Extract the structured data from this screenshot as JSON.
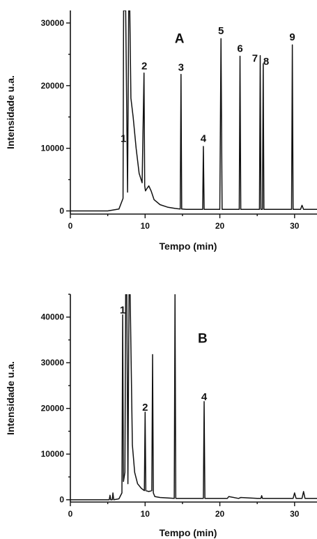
{
  "chart_data": [
    {
      "type": "line",
      "panel": "A",
      "xlabel": "Tempo (min)",
      "ylabel": "Intensidade u.a.",
      "xlim": [
        0,
        33
      ],
      "ylim": [
        -500,
        32000
      ],
      "xticks": [
        0,
        10,
        20,
        30
      ],
      "yticks": [
        0,
        10000,
        20000,
        30000
      ],
      "grid": false,
      "legend": "none",
      "series": [
        {
          "x": [
            0,
            5,
            6.5,
            7.05,
            7.12,
            7.4,
            7.65,
            7.8,
            7.95,
            8.1,
            8.4,
            8.8,
            9.2,
            9.6,
            9.85,
            9.95,
            10.05,
            10.2,
            10.5,
            10.8,
            11.2,
            12,
            13,
            14,
            14.7,
            14.8,
            14.9,
            15.5,
            17.7,
            17.8,
            17.9,
            20,
            20.15,
            20.3,
            22.6,
            22.7,
            22.8,
            25.3,
            25.4,
            25.5,
            25.7,
            25.8,
            25.9,
            29.6,
            29.7,
            29.8,
            30.8,
            31,
            31.2,
            33
          ],
          "y": [
            0,
            0,
            300,
            2000,
            32000,
            32000,
            3000,
            32000,
            32000,
            18000,
            15000,
            10000,
            6000,
            4500,
            22000,
            4000,
            3200,
            3500,
            4000,
            3200,
            1800,
            1000,
            600,
            400,
            300,
            21800,
            300,
            250,
            250,
            10300,
            250,
            250,
            27500,
            250,
            250,
            24700,
            250,
            250,
            24800,
            250,
            250,
            23500,
            250,
            250,
            26500,
            250,
            250,
            900,
            250,
            250
          ]
        }
      ],
      "annotations": [
        {
          "label": "1",
          "x": 7.1,
          "y": 11000
        },
        {
          "label": "2",
          "x": 9.9,
          "y": 22600
        },
        {
          "label": "3",
          "x": 14.8,
          "y": 22400
        },
        {
          "label": "4",
          "x": 17.8,
          "y": 11000
        },
        {
          "label": "5",
          "x": 20.15,
          "y": 28200
        },
        {
          "label": "6",
          "x": 22.7,
          "y": 25400
        },
        {
          "label": "7",
          "x": 24.7,
          "y": 23800
        },
        {
          "label": "8",
          "x": 26.2,
          "y": 23300
        },
        {
          "label": "9",
          "x": 29.7,
          "y": 27200
        },
        {
          "label": "A",
          "x": 14.6,
          "y": 26800
        }
      ]
    },
    {
      "type": "line",
      "panel": "B",
      "xlabel": "Tempo (min)",
      "ylabel": "Intensidade u.a.",
      "xlim": [
        0,
        33
      ],
      "ylim": [
        -500,
        45000
      ],
      "xticks": [
        0,
        10,
        20,
        30
      ],
      "yticks": [
        0,
        10000,
        20000,
        30000,
        40000
      ],
      "grid": false,
      "legend": "none",
      "series": [
        {
          "x": [
            0,
            5.2,
            5.3,
            5.4,
            5.6,
            5.7,
            5.8,
            6.5,
            6.9,
            7.0,
            7.1,
            7.3,
            7.4,
            7.55,
            7.7,
            7.85,
            8.0,
            8.3,
            8.6,
            9.0,
            9.5,
            9.9,
            10.0,
            10.1,
            10.5,
            10.9,
            11.0,
            11.1,
            11.3,
            12,
            13,
            13.9,
            14.0,
            14.1,
            15,
            17.8,
            17.9,
            18.0,
            20,
            21,
            21.2,
            22.5,
            22.8,
            25,
            25.5,
            25.6,
            25.7,
            27,
            29.8,
            30,
            30.2,
            31,
            31.2,
            31.4,
            33
          ],
          "y": [
            0,
            0,
            1000,
            0,
            0,
            1500,
            0,
            200,
            1500,
            40500,
            4000,
            6000,
            45000,
            45000,
            3500,
            45000,
            45000,
            12000,
            6000,
            3500,
            2500,
            2000,
            19200,
            2000,
            1800,
            2000,
            31800,
            1500,
            700,
            500,
            400,
            300,
            45000,
            300,
            300,
            300,
            21500,
            300,
            300,
            300,
            700,
            300,
            500,
            300,
            300,
            900,
            300,
            300,
            300,
            1500,
            300,
            300,
            1800,
            300,
            300
          ]
        }
      ],
      "annotations": [
        {
          "label": "1",
          "x": 7.0,
          "y": 40800
        },
        {
          "label": "2",
          "x": 10.0,
          "y": 19500
        },
        {
          "label": "4",
          "x": 17.9,
          "y": 21800
        },
        {
          "label": "B",
          "x": 17.7,
          "y": 34400
        }
      ]
    }
  ]
}
